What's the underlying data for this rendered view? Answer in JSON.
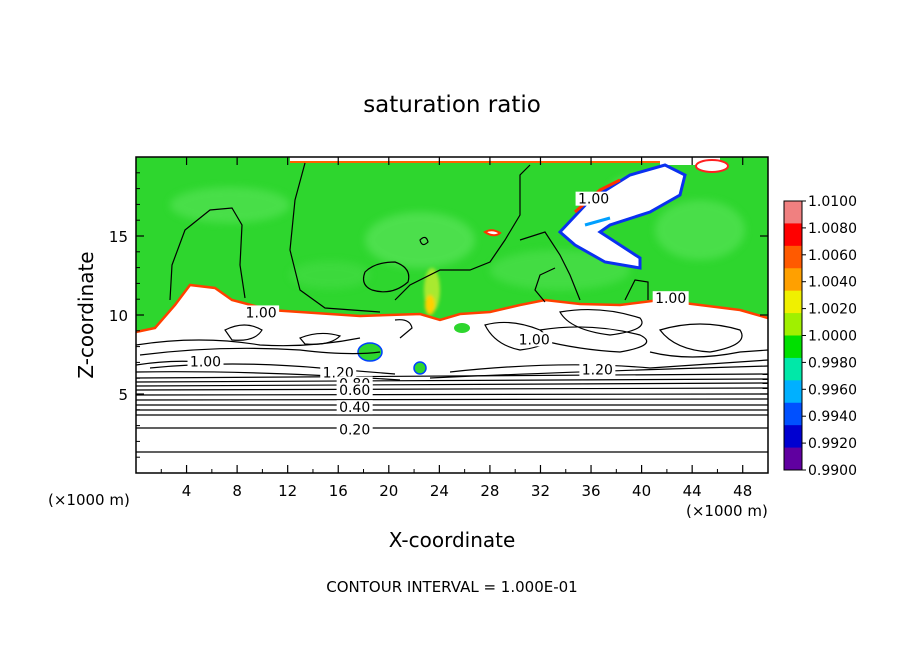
{
  "chart_data": {
    "type": "heatmap",
    "title": "saturation ratio",
    "xlabel": "X-coordinate",
    "ylabel": "Z-coordinate",
    "x_unit": "(×1000 m)",
    "y_unit": "(×1000 m)",
    "xlim": [
      0,
      50
    ],
    "ylim": [
      0,
      20
    ],
    "x_ticks": [
      4,
      8,
      12,
      16,
      20,
      24,
      28,
      32,
      36,
      40,
      44,
      48
    ],
    "y_ticks": [
      5,
      10,
      15
    ],
    "footer": "CONTOUR INTERVAL = 1.000E-01",
    "colorbar": {
      "min": 0.99,
      "max": 1.01,
      "labels": [
        "1.0100",
        "1.0080",
        "1.0060",
        "1.0040",
        "1.0020",
        "1.0000",
        "0.9980",
        "0.9960",
        "0.9940",
        "0.9920",
        "0.9900"
      ],
      "colors": [
        "#f08080",
        "#ff0000",
        "#ff5a00",
        "#ffa000",
        "#f0f000",
        "#a0f000",
        "#00e000",
        "#00e8a8",
        "#00b0ff",
        "#0050ff",
        "#0000d0",
        "#6000a0"
      ]
    },
    "contour_labels": [
      {
        "text": "1.00",
        "x": 9.9,
        "z": 10.1
      },
      {
        "text": "1.00",
        "x": 5.5,
        "z": 7.0
      },
      {
        "text": "1.20",
        "x": 16.0,
        "z": 6.3
      },
      {
        "text": "0.80",
        "x": 17.3,
        "z": 5.6
      },
      {
        "text": "0.60",
        "x": 17.3,
        "z": 5.2
      },
      {
        "text": "0.40",
        "x": 17.3,
        "z": 4.1
      },
      {
        "text": "0.20",
        "x": 17.3,
        "z": 2.7
      },
      {
        "text": "1.00",
        "x": 31.5,
        "z": 8.4
      },
      {
        "text": "1.20",
        "x": 36.5,
        "z": 6.5
      },
      {
        "text": "1.00",
        "x": 42.3,
        "z": 11.0
      },
      {
        "text": "1.00",
        "x": 36.2,
        "z": 17.3
      }
    ],
    "colors": {
      "background_field": "#30d830",
      "cloud": "#ffffff"
    }
  }
}
